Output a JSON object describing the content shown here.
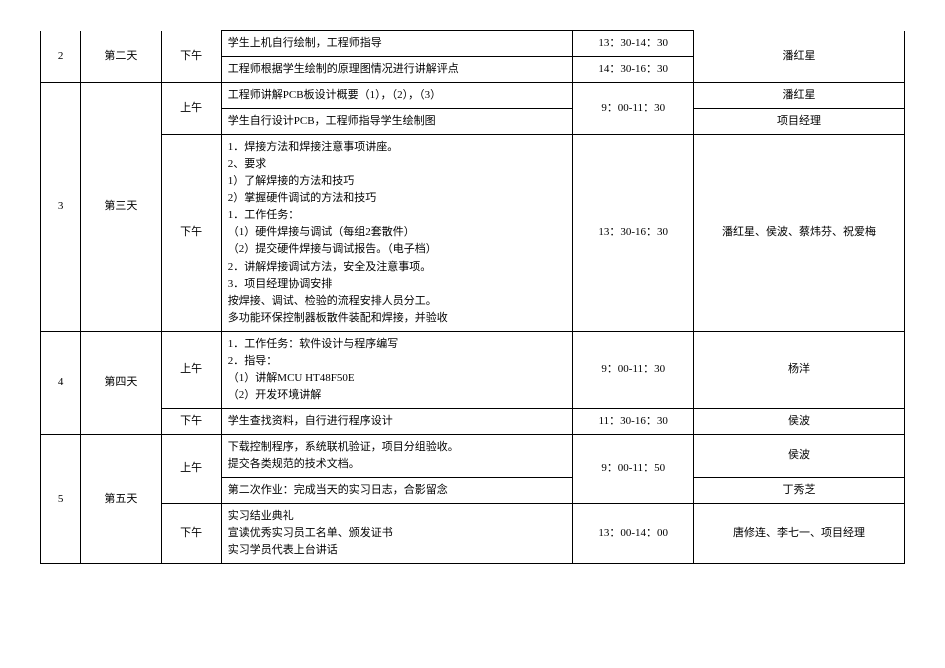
{
  "rows": [
    {
      "r": "r0",
      "num": "2",
      "day": "第二天",
      "session": "下午",
      "content": "学生上机自行绘制，工程师指导",
      "time": "13：30-14：30",
      "person": "潘红星",
      "num_rs": 2,
      "day_rs": 2,
      "session_rs": 2,
      "content_rs": 1,
      "time_rs": 1,
      "person_rs": 2,
      "num_cls": "center no-top",
      "day_cls": "center no-top",
      "session_cls": "center no-top",
      "person_cls": "center no-top"
    },
    {
      "r": "r1",
      "content": "工程师根据学生绘制的原理图情况进行讲解评点",
      "time": "14：30-16：30",
      "content_rs": 1,
      "time_rs": 1
    },
    {
      "r": "r2",
      "num": "3",
      "day": "第三天",
      "session": "上午",
      "content": "工程师讲解PCB板设计概要（1），（2），（3）",
      "time": "9：00-11：30",
      "person": "潘红星",
      "num_rs": 3,
      "day_rs": 3,
      "session_rs": 2,
      "content_rs": 1,
      "time_rs": 2,
      "person_rs": 1,
      "num_cls": "center",
      "day_cls": "center",
      "session_cls": "center",
      "time_cls": "center",
      "person_cls": "center"
    },
    {
      "r": "r3",
      "content": "学生自行设计PCB，工程师指导学生绘制图",
      "person": "项目经理",
      "content_rs": 1,
      "person_rs": 1,
      "person_cls": "center"
    },
    {
      "r": "r4",
      "session": "下午",
      "content": "1．焊接方法和焊接注意事项讲座。\n2、要求\n1）了解焊接的方法和技巧\n2）掌握硬件调试的方法和技巧\n1．工作任务：\n（1）硬件焊接与调试（每组2套散件）\n（2）提交硬件焊接与调试报告。（电子档）\n2．讲解焊接调试方法，安全及注意事项。\n3．项目经理协调安排\n按焊接、调试、检验的流程安排人员分工。\n多功能环保控制器板散件装配和焊接，并验收",
      "time": "13：30-16：30",
      "person": "潘红星、侯波、蔡炜芬、祝爱梅",
      "session_rs": 1,
      "content_rs": 1,
      "time_rs": 1,
      "person_rs": 1,
      "session_cls": "center",
      "content_cls": "left multiline",
      "time_cls": "center",
      "person_cls": "center"
    },
    {
      "r": "r5",
      "num": "4",
      "day": "第四天",
      "session": "上午",
      "content": "1．工作任务：软件设计与程序编写\n2．指导：\n（1）讲解MCU HT48F50E\n（2）开发环境讲解\n",
      "time": "9：00-11：30",
      "person": "杨洋",
      "num_rs": 2,
      "day_rs": 2,
      "session_rs": 1,
      "content_rs": 1,
      "time_rs": 1,
      "person_rs": 1,
      "num_cls": "center",
      "day_cls": "center",
      "session_cls": "center",
      "content_cls": "left multiline",
      "time_cls": "center",
      "person_cls": "center"
    },
    {
      "r": "r6",
      "session": "下午",
      "content": "学生查找资料，自行进行程序设计",
      "time": "11：30-16：30",
      "person": "侯波",
      "session_rs": 1,
      "content_rs": 1,
      "time_rs": 1,
      "person_rs": 1,
      "session_cls": "center",
      "time_cls": "center",
      "person_cls": "center"
    },
    {
      "r": "r7",
      "num": "5",
      "day": "第五天",
      "session": "上午",
      "content": "下载控制程序，系统联机验证，项目分组验收。\n提交各类规范的技术文档。",
      "time": "9：00-11：50",
      "person": "侯波",
      "num_rs": 3,
      "day_rs": 3,
      "session_rs": 2,
      "content_rs": 1,
      "time_rs": 2,
      "person_rs": 1,
      "num_cls": "center",
      "day_cls": "center",
      "session_cls": "center",
      "content_cls": "left multiline",
      "time_cls": "center",
      "person_cls": "center"
    },
    {
      "r": "r8",
      "content": "第二次作业：完成当天的实习日志，合影留念",
      "person": "丁秀芝",
      "content_rs": 1,
      "person_rs": 1,
      "person_cls": "center"
    },
    {
      "r": "r9",
      "session": "下午",
      "content": "实习结业典礼\n宣读优秀实习员工名单、颁发证书\n实习学员代表上台讲话",
      "time": "13：00-14：00",
      "person": "唐修连、李七一、项目经理",
      "session_rs": 1,
      "content_rs": 1,
      "time_rs": 1,
      "person_rs": 1,
      "session_cls": "center",
      "content_cls": "left multiline",
      "time_cls": "center",
      "person_cls": "center"
    }
  ],
  "columns": [
    "num",
    "day",
    "session",
    "content",
    "time",
    "person"
  ],
  "col_default_cls": {
    "num": "center",
    "day": "center",
    "session": "center",
    "content": "left",
    "time": "center",
    "person": "center"
  }
}
